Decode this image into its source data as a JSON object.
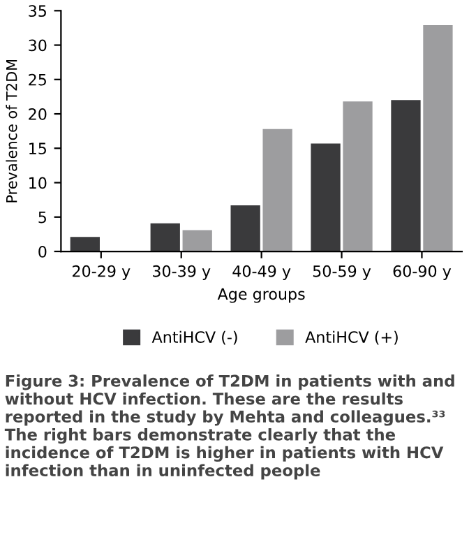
{
  "chart_data": {
    "type": "bar",
    "xlabel": "Age groups",
    "ylabel": "Prevalence of T2DM",
    "categories": [
      "20-29 y",
      "30-39 y",
      "40-49 y",
      "50-59 y",
      "60-90 y"
    ],
    "series": [
      {
        "name": "AntiHCV (-)",
        "color": "#3a3a3c",
        "values": [
          2.1,
          4.1,
          6.7,
          15.7,
          22
        ]
      },
      {
        "name": "AntiHCV (+)",
        "color": "#9d9d9f",
        "values": [
          null,
          3.1,
          17.8,
          21.8,
          32.9
        ]
      }
    ],
    "ylim": [
      0,
      35
    ],
    "yticks": [
      0,
      5,
      10,
      15,
      20,
      25,
      30,
      35
    ],
    "grid": false,
    "legend": "bottom",
    "annotations": [
      "Figure 3: Prevalence of T2DM in patients with and without HCV infection. These are the results reported in the study by Mehta and colleagues.³³ The right bars demonstrate clearly that the incidence of T2DM is higher in patients with HCV infection than in uninfected people"
    ]
  }
}
